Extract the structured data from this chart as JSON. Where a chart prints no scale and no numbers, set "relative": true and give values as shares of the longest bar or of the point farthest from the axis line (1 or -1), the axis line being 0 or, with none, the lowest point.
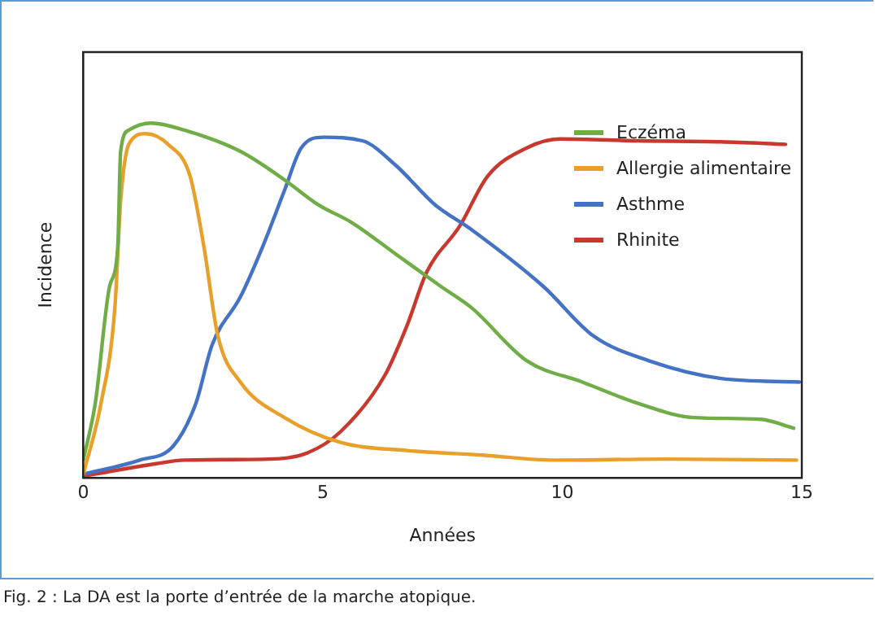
{
  "chart_data": {
    "type": "line",
    "relative": true,
    "xlabel": "Années",
    "ylabel": "Incidence",
    "xlim": [
      0,
      15
    ],
    "xticks": [
      0,
      5,
      10,
      15
    ],
    "grid": false,
    "legend": "top right",
    "marker": "none",
    "line_style": "solid",
    "annotations": [
      "Fig. 2 : La DA est la porte d’entrée de la marche atopique."
    ],
    "series": [
      {
        "name": "Eczéma",
        "color": "#70ad47",
        "x": [
          0,
          0.25,
          0.55,
          0.72,
          0.78,
          0.95,
          1.42,
          2.11,
          3.28,
          4.2,
          4.9,
          5.6,
          6.53,
          7.46,
          8.1,
          9.26,
          10.42,
          11.58,
          12.74,
          14.14,
          14.83
        ],
        "values": [
          0.05,
          0.21,
          0.54,
          0.65,
          0.92,
          0.98,
          1.0,
          0.98,
          0.92,
          0.84,
          0.77,
          0.72,
          0.63,
          0.54,
          0.48,
          0.33,
          0.27,
          0.21,
          0.17,
          0.165,
          0.14
        ]
      },
      {
        "name": "Allergie alimentaire",
        "color": "#e8a02a",
        "x": [
          0,
          0.37,
          0.66,
          0.78,
          0.95,
          1.3,
          1.77,
          2.23,
          2.52,
          2.81,
          3.28,
          4.2,
          5.37,
          6.76,
          8.33,
          9.84,
          12.16,
          14.89
        ],
        "values": [
          0.01,
          0.21,
          0.48,
          0.78,
          0.94,
          0.97,
          0.94,
          0.85,
          0.65,
          0.4,
          0.27,
          0.17,
          0.1,
          0.077,
          0.064,
          0.05,
          0.053,
          0.05
        ]
      },
      {
        "name": "Asthme",
        "color": "#4472c4",
        "x": [
          0,
          1.18,
          1.88,
          2.35,
          2.69,
          3.28,
          3.74,
          4.2,
          4.55,
          5.02,
          5.83,
          6.53,
          7.34,
          8.1,
          9.6,
          10.65,
          11.81,
          13.32,
          14.95
        ],
        "values": [
          0.01,
          0.05,
          0.09,
          0.21,
          0.375,
          0.51,
          0.65,
          0.81,
          0.93,
          0.96,
          0.95,
          0.88,
          0.77,
          0.7,
          0.54,
          0.4,
          0.33,
          0.28,
          0.27
        ]
      },
      {
        "name": "Rhinite",
        "color": "#c8382e",
        "x": [
          0,
          1.53,
          2.11,
          3.86,
          4.67,
          5.37,
          6.3,
          6.76,
          7.17,
          7.86,
          8.44,
          9.26,
          9.95,
          11.58,
          13.32,
          14.66
        ],
        "values": [
          0.005,
          0.04,
          0.05,
          0.053,
          0.07,
          0.13,
          0.29,
          0.43,
          0.58,
          0.71,
          0.85,
          0.93,
          0.955,
          0.95,
          0.947,
          0.94
        ]
      }
    ]
  }
}
